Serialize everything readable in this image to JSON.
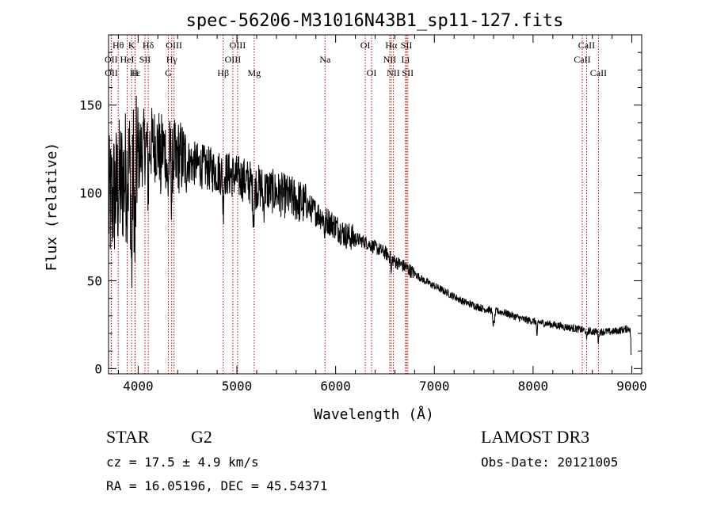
{
  "chart_data": {
    "type": "line",
    "title": "spec-56206-M31016N43B1_sp11-127.fits",
    "xlabel": "Wavelength (Å)",
    "ylabel": "Flux (relative)",
    "xlim": [
      3700,
      9100
    ],
    "ylim": [
      -3,
      190
    ],
    "xticks": [
      4000,
      5000,
      6000,
      7000,
      8000,
      9000
    ],
    "xtick_labels": [
      "4000",
      "5000",
      "6000",
      "7000",
      "8000",
      "9000"
    ],
    "yticks": [
      0,
      50,
      100,
      150
    ],
    "ytick_labels": [
      "0",
      "50",
      "100",
      "150"
    ],
    "continuum": [
      [
        3700,
        92
      ],
      [
        3750,
        98
      ],
      [
        3800,
        103
      ],
      [
        3850,
        108
      ],
      [
        3900,
        112
      ],
      [
        3950,
        117
      ],
      [
        4000,
        120
      ],
      [
        4050,
        126
      ],
      [
        4100,
        127
      ],
      [
        4150,
        128
      ],
      [
        4200,
        127
      ],
      [
        4300,
        124
      ],
      [
        4400,
        121
      ],
      [
        4500,
        118
      ],
      [
        4600,
        116
      ],
      [
        4700,
        114
      ],
      [
        4800,
        112
      ],
      [
        4900,
        111
      ],
      [
        5000,
        109
      ],
      [
        5100,
        107
      ],
      [
        5200,
        104
      ],
      [
        5300,
        102
      ],
      [
        5400,
        100
      ],
      [
        5500,
        98
      ],
      [
        5600,
        96
      ],
      [
        5700,
        93
      ],
      [
        5800,
        89
      ],
      [
        5900,
        85
      ],
      [
        6000,
        81
      ],
      [
        6100,
        76
      ],
      [
        6200,
        74
      ],
      [
        6300,
        72
      ],
      [
        6400,
        69
      ],
      [
        6500,
        66
      ],
      [
        6600,
        61
      ],
      [
        6700,
        58
      ],
      [
        6800,
        54
      ],
      [
        6900,
        50
      ],
      [
        7000,
        47
      ],
      [
        7100,
        44
      ],
      [
        7200,
        41
      ],
      [
        7300,
        38
      ],
      [
        7400,
        36
      ],
      [
        7500,
        34
      ],
      [
        7600,
        33
      ],
      [
        7700,
        32
      ],
      [
        7800,
        30
      ],
      [
        7900,
        28
      ],
      [
        8000,
        27
      ],
      [
        8100,
        26
      ],
      [
        8200,
        25
      ],
      [
        8300,
        24
      ],
      [
        8400,
        23
      ],
      [
        8500,
        22
      ],
      [
        8600,
        21
      ],
      [
        8700,
        21
      ],
      [
        8800,
        21
      ],
      [
        8900,
        22
      ],
      [
        8980,
        23
      ],
      [
        9000,
        10
      ]
    ],
    "absorption": [
      [
        3934,
        60,
        6
      ],
      [
        3968,
        50,
        6
      ],
      [
        4102,
        25,
        5
      ],
      [
        4227,
        15,
        5
      ],
      [
        4300,
        20,
        9
      ],
      [
        4340,
        25,
        5
      ],
      [
        4383,
        12,
        5
      ],
      [
        4861,
        20,
        5
      ],
      [
        5170,
        15,
        9
      ],
      [
        5270,
        10,
        6
      ],
      [
        5890,
        8,
        6
      ],
      [
        6563,
        9,
        4
      ],
      [
        7600,
        8,
        10
      ],
      [
        8040,
        10,
        4
      ],
      [
        8542,
        6,
        4
      ],
      [
        8662,
        6,
        4
      ]
    ],
    "lines": [
      {
        "label": "Hβ",
        "x": 4861,
        "row": 3
      },
      {
        "label": "Hγ",
        "x": 4340,
        "row": 2
      },
      {
        "label": "Hδ",
        "x": 4102,
        "row": 1
      },
      {
        "label": "Hα",
        "x": 6563,
        "row": 1
      },
      {
        "label": "Hε",
        "x": 3970,
        "row": 3
      },
      {
        "label": "Hθ",
        "x": 3798,
        "row": 1
      },
      {
        "label": "HeI",
        "x": 3889,
        "row": 2
      },
      {
        "label": "K",
        "x": 3934,
        "row": 1
      },
      {
        "label": "H",
        "x": 3968,
        "row": 3
      },
      {
        "label": "SII",
        "x": 4069,
        "row": 2
      },
      {
        "label": "OIII",
        "x": 4363,
        "row": 1
      },
      {
        "label": "G",
        "x": 4305,
        "row": 3
      },
      {
        "label": "OIII",
        "x": 4959,
        "row": 2
      },
      {
        "label": "OIII",
        "x": 5007,
        "row": 1
      },
      {
        "label": "Mg",
        "x": 5175,
        "row": 3
      },
      {
        "label": "Na",
        "x": 5893,
        "row": 2
      },
      {
        "label": "OI",
        "x": 6300,
        "row": 1
      },
      {
        "label": "OI",
        "x": 6364,
        "row": 3
      },
      {
        "label": "NII",
        "x": 6548,
        "row": 2
      },
      {
        "label": "NII",
        "x": 6584,
        "row": 3
      },
      {
        "label": "SII",
        "x": 6717,
        "row": 1
      },
      {
        "label": "Li",
        "x": 6708,
        "row": 2
      },
      {
        "label": "SII",
        "x": 6731,
        "row": 3
      },
      {
        "label": "OII",
        "x": 3727,
        "row": 2
      },
      {
        "label": "OII",
        "x": 3729,
        "row": 3
      },
      {
        "label": "CaII",
        "x": 8498,
        "row": 2
      },
      {
        "label": "CaII",
        "x": 8542,
        "row": 1
      },
      {
        "label": "CaII",
        "x": 8662,
        "row": 3
      }
    ]
  },
  "info": {
    "class": "STAR",
    "subclass": "G2",
    "redshift": "cz =  17.5 ± 4.9 km/s",
    "coords": "RA =  16.05196, DEC =  45.54371",
    "survey": "LAMOST DR3",
    "obsdate": "Obs-Date: 20121005"
  },
  "colors": {
    "spectrum": "#000000",
    "line_marker": "#c00000",
    "axis": "#000000"
  }
}
